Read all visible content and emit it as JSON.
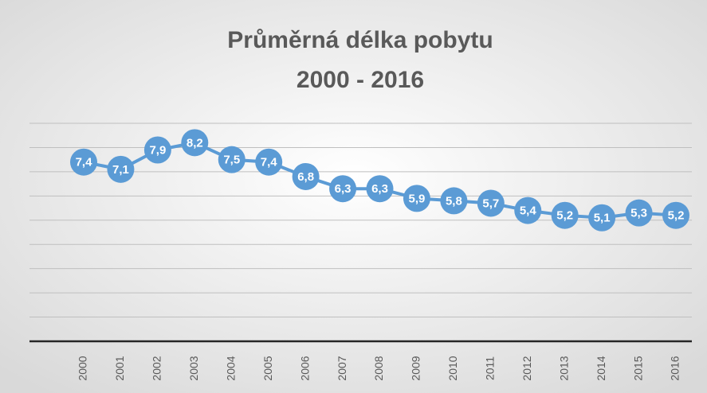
{
  "chart_data": {
    "type": "line",
    "title": "Průměrná délka pobytu",
    "subtitle": "2000 - 2016",
    "categories": [
      "2000",
      "2001",
      "2002",
      "2003",
      "2004",
      "2005",
      "2006",
      "2007",
      "2008",
      "2009",
      "2010",
      "2011",
      "2012",
      "2013",
      "2014",
      "2015",
      "2016"
    ],
    "values": [
      7.4,
      7.1,
      7.9,
      8.2,
      7.5,
      7.4,
      6.8,
      6.3,
      6.3,
      5.9,
      5.8,
      5.7,
      5.4,
      5.2,
      5.1,
      5.3,
      5.2
    ],
    "value_labels": [
      "7,4",
      "7,1",
      "7,9",
      "8,2",
      "7,5",
      "7,4",
      "6,8",
      "6,3",
      "6,3",
      "5,9",
      "5,8",
      "5,7",
      "5,4",
      "5,2",
      "5,1",
      "5,3",
      "5,2"
    ],
    "color": "#5b9bd5",
    "ylim": [
      0,
      9
    ],
    "yticks": [
      0,
      1,
      2,
      3,
      4,
      5,
      6,
      7,
      8,
      9
    ],
    "grid": true
  }
}
